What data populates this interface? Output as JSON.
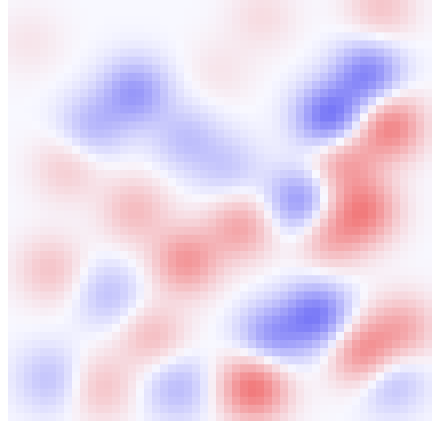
{
  "chart_data": {
    "type": "heatmap",
    "title": "",
    "xlabel": "",
    "ylabel": "",
    "colormap": {
      "name": "diverging-blue-white-red",
      "negative": "#5a5af5",
      "neutral": "#f8f8ff",
      "positive": "#f06060"
    },
    "value_range": [
      -1,
      1
    ],
    "grid": false,
    "legend": "none",
    "axes_visible": false,
    "field_peaks": [
      {
        "x": 0.3,
        "y": 0.22,
        "value": -0.55
      },
      {
        "x": 0.2,
        "y": 0.3,
        "value": -0.35
      },
      {
        "x": 0.42,
        "y": 0.33,
        "value": -0.3
      },
      {
        "x": 0.76,
        "y": 0.28,
        "value": -0.85
      },
      {
        "x": 0.85,
        "y": 0.18,
        "value": -0.7
      },
      {
        "x": 0.69,
        "y": 0.48,
        "value": -0.6
      },
      {
        "x": 0.79,
        "y": 0.38,
        "value": 0.55
      },
      {
        "x": 0.9,
        "y": 0.3,
        "value": 0.75
      },
      {
        "x": 0.84,
        "y": 0.5,
        "value": 0.7
      },
      {
        "x": 0.76,
        "y": 0.56,
        "value": 0.45
      },
      {
        "x": 0.42,
        "y": 0.62,
        "value": 0.6
      },
      {
        "x": 0.55,
        "y": 0.54,
        "value": 0.5
      },
      {
        "x": 0.3,
        "y": 0.5,
        "value": 0.35
      },
      {
        "x": 0.14,
        "y": 0.4,
        "value": 0.25
      },
      {
        "x": 0.1,
        "y": 0.64,
        "value": 0.3
      },
      {
        "x": 0.34,
        "y": 0.8,
        "value": 0.35
      },
      {
        "x": 0.22,
        "y": 0.92,
        "value": 0.3
      },
      {
        "x": 0.58,
        "y": 0.92,
        "value": 0.85
      },
      {
        "x": 0.84,
        "y": 0.84,
        "value": 0.7
      },
      {
        "x": 0.93,
        "y": 0.78,
        "value": 0.45
      },
      {
        "x": 0.73,
        "y": 0.75,
        "value": -0.75
      },
      {
        "x": 0.62,
        "y": 0.8,
        "value": -0.55
      },
      {
        "x": 0.9,
        "y": 0.9,
        "value": -0.4
      },
      {
        "x": 0.1,
        "y": 0.9,
        "value": -0.3
      },
      {
        "x": 0.24,
        "y": 0.7,
        "value": -0.3
      },
      {
        "x": 0.4,
        "y": 0.92,
        "value": -0.35
      },
      {
        "x": 0.52,
        "y": 0.4,
        "value": -0.25
      },
      {
        "x": 0.6,
        "y": 0.04,
        "value": 0.15
      },
      {
        "x": 0.88,
        "y": 0.02,
        "value": 0.3
      },
      {
        "x": 0.05,
        "y": 0.1,
        "value": 0.1
      },
      {
        "x": 0.5,
        "y": 0.17,
        "value": 0.1
      }
    ],
    "field_spread": 0.055
  }
}
